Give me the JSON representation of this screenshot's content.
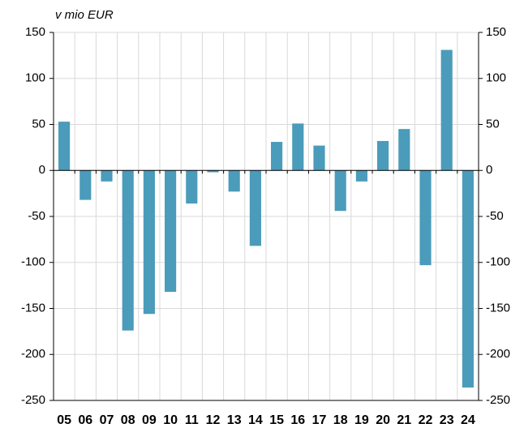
{
  "chart_data": {
    "type": "bar",
    "title": "v mio EUR",
    "categories": [
      "05",
      "06",
      "07",
      "08",
      "09",
      "10",
      "11",
      "12",
      "13",
      "14",
      "15",
      "16",
      "17",
      "18",
      "19",
      "20",
      "21",
      "22",
      "23",
      "24"
    ],
    "values": [
      53,
      -32,
      -12,
      -174,
      -156,
      -132,
      -36,
      -2,
      -23,
      -82,
      31,
      51,
      27,
      -44,
      -12,
      32,
      45,
      -103,
      131,
      -236
    ],
    "color": "#4b9bbb",
    "ylim": [
      -250,
      150
    ],
    "yticks": [
      -250,
      -200,
      -150,
      -100,
      -50,
      0,
      50,
      100,
      150
    ],
    "y2lim": [
      -250,
      150
    ],
    "y2ticks": [
      -250,
      -200,
      -150,
      -100,
      -50,
      0,
      50,
      100,
      150
    ],
    "grid": true
  }
}
